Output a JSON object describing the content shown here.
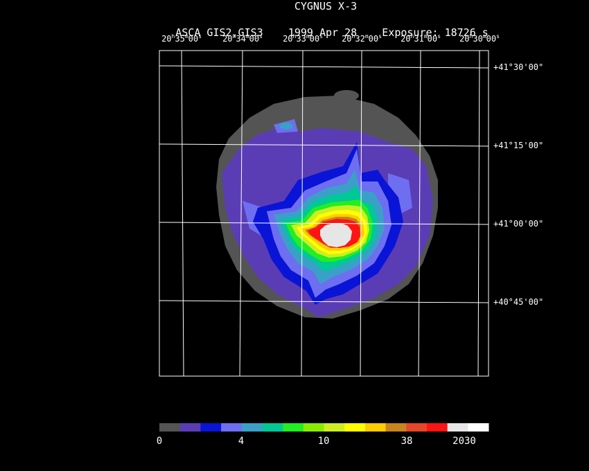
{
  "title": {
    "object": "CYGNUS X-3",
    "instrument": "ASCA GIS2,GIS3",
    "date": "1999 Apr 28",
    "exposure": "Exposure: 18726 s"
  },
  "ra_axis": {
    "labels": [
      {
        "h": "20",
        "m": "35",
        "s": "00"
      },
      {
        "h": "20",
        "m": "34",
        "s": "00"
      },
      {
        "h": "20",
        "m": "33",
        "s": "00"
      },
      {
        "h": "20",
        "m": "32",
        "s": "00"
      },
      {
        "h": "20",
        "m": "31",
        "s": "00"
      },
      {
        "h": "20",
        "m": "30",
        "s": "00"
      }
    ]
  },
  "dec_axis": {
    "labels": [
      "+41°30'00\"",
      "+41°15'00\"",
      "+41°00'00\"",
      "+40°45'00\""
    ]
  },
  "colorbar": {
    "colors": [
      "#545454",
      "#5a3db5",
      "#0a14d6",
      "#6e6ef0",
      "#3aa0c8",
      "#00c896",
      "#22ee22",
      "#88ee00",
      "#ccee22",
      "#ffff00",
      "#ffcc00",
      "#c8821e",
      "#e84628",
      "#ff1414",
      "#e6e6e6",
      "#ffffff"
    ],
    "tick_labels": [
      "0",
      "4",
      "10",
      "38",
      "2030"
    ]
  }
}
